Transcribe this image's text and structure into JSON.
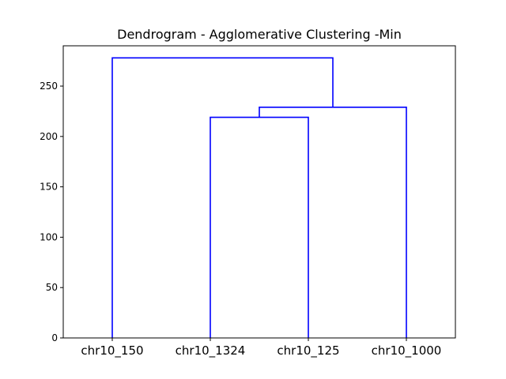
{
  "chart_data": {
    "type": "dendrogram",
    "title": "Dendrogram - Agglomerative Clustering -Min",
    "xlabel": "",
    "ylabel": "",
    "leaves": [
      "chr10_150",
      "chr10_1324",
      "chr10_125",
      "chr10_1000"
    ],
    "ylim": [
      0,
      290
    ],
    "yticks": [
      0,
      50,
      100,
      150,
      200,
      250
    ],
    "merges": [
      {
        "left": "chr10_1324",
        "right": "chr10_125",
        "height": 219
      },
      {
        "left": "chr10_1324+chr10_125",
        "right": "chr10_1000",
        "height": 229
      },
      {
        "left": "chr10_150",
        "right": "chr10_1324+chr10_125+chr10_1000",
        "height": 278
      }
    ],
    "link_color": "#0000ff",
    "grid": false
  }
}
